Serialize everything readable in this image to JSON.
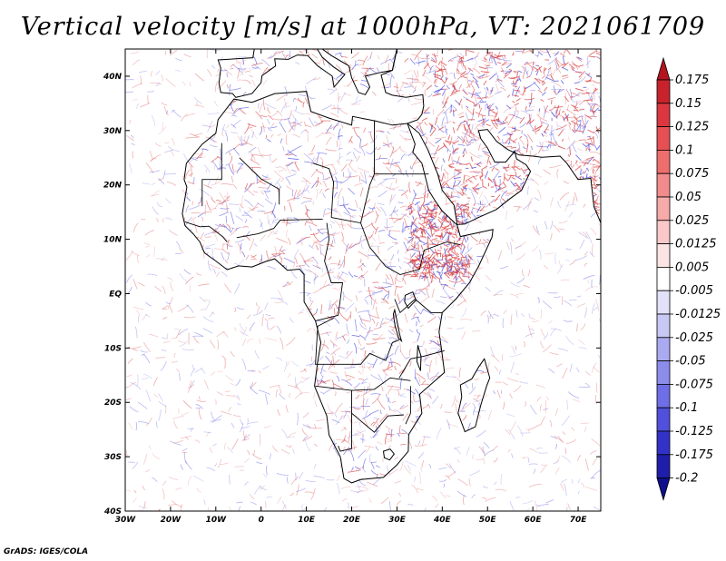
{
  "title": "Vertical velocity [m/s] at 1000hPa, VT: 2021061709",
  "footer": "GrADS: IGES/COLA",
  "map": {
    "projection": "lat-lon",
    "lon_range": [
      -30,
      75
    ],
    "lat_range": [
      -40,
      45
    ],
    "lat_ticks": [
      {
        "value": 40,
        "label": "40N"
      },
      {
        "value": 30,
        "label": "30N"
      },
      {
        "value": 20,
        "label": "20N"
      },
      {
        "value": 10,
        "label": "10N"
      },
      {
        "value": 0,
        "label": "EQ"
      },
      {
        "value": -10,
        "label": "10S"
      },
      {
        "value": -20,
        "label": "20S"
      },
      {
        "value": -30,
        "label": "30S"
      },
      {
        "value": -40,
        "label": "40S"
      }
    ],
    "lon_ticks": [
      {
        "value": -30,
        "label": "30W"
      },
      {
        "value": -20,
        "label": "20W"
      },
      {
        "value": -10,
        "label": "10W"
      },
      {
        "value": 0,
        "label": "0"
      },
      {
        "value": 10,
        "label": "10E"
      },
      {
        "value": 20,
        "label": "20E"
      },
      {
        "value": 30,
        "label": "30E"
      },
      {
        "value": 40,
        "label": "40E"
      },
      {
        "value": 50,
        "label": "50E"
      },
      {
        "value": 60,
        "label": "60E"
      },
      {
        "value": 70,
        "label": "70E"
      }
    ]
  },
  "colorbar": {
    "levels": [
      {
        "label": "0.175",
        "color": "#b4141e"
      },
      {
        "label": "0.15",
        "color": "#c8232d"
      },
      {
        "label": "0.125",
        "color": "#dc3741"
      },
      {
        "label": "0.1",
        "color": "#e65055"
      },
      {
        "label": "0.075",
        "color": "#ee6e6e"
      },
      {
        "label": "0.05",
        "color": "#f28c8c"
      },
      {
        "label": "0.025",
        "color": "#f7aaaa"
      },
      {
        "label": "0.0125",
        "color": "#fac8c8"
      },
      {
        "label": "0.005",
        "color": "#fde4e4"
      },
      {
        "label": "-0.005",
        "color": "#ffffff"
      },
      {
        "label": "-0.0125",
        "color": "#e1e1fa"
      },
      {
        "label": "-0.025",
        "color": "#c8c8f5"
      },
      {
        "label": "-0.05",
        "color": "#aaaaf0"
      },
      {
        "label": "-0.075",
        "color": "#8c8ceb"
      },
      {
        "label": "-0.1",
        "color": "#6e6ee6"
      },
      {
        "label": "-0.125",
        "color": "#5050dc"
      },
      {
        "label": "-0.175",
        "color": "#3232c8"
      },
      {
        "label": "-0.2",
        "color": "#1e1eaa"
      }
    ],
    "bottom_color": "#0f0f8c"
  },
  "colors": {
    "coast": "#000000",
    "updraft": "#e06060",
    "downdraft": "#6a6ae6"
  }
}
